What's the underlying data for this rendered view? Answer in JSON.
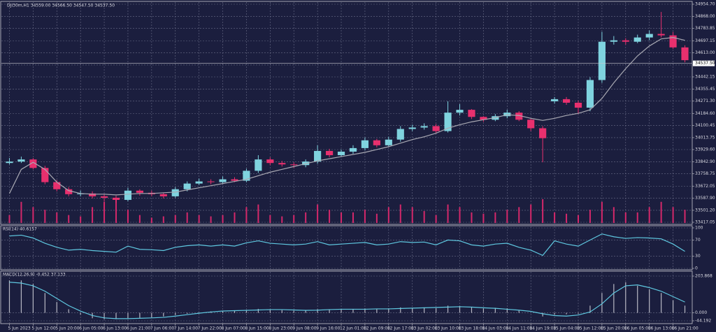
{
  "chart_data": [
    {
      "type": "candlestick",
      "title": "DJI30m,H1  34559.00 34566.50 34547.50 34537.50",
      "categories": [
        "5 Jun 2023",
        null,
        "5 Jun 12:00",
        null,
        "5 Jun 20:00",
        null,
        "6 Jun 05:00",
        null,
        "6 Jun 13:00",
        null,
        "6 Jun 21:00",
        null,
        "7 Jun 06:00",
        null,
        "7 Jun 14:00",
        null,
        "7 Jun 22:00",
        null,
        "8 Jun 07:00",
        null,
        "8 Jun 15:00",
        null,
        "8 Jun 23:00",
        null,
        "9 Jun 08:00",
        null,
        "9 Jun 16:00",
        null,
        "12 Jun 01:00",
        null,
        "12 Jun 09:00",
        null,
        "12 Jun 17:00",
        null,
        "13 Jun 02:00",
        null,
        "13 Jun 10:00",
        null,
        "13 Jun 18:00",
        null,
        "14 Jun 03:00",
        null,
        "14 Jun 11:00",
        null,
        "14 Jun 19:00",
        null,
        "15 Jun 04:00",
        null,
        "15 Jun 12:00",
        null,
        "15 Jun 20:00",
        null,
        "16 Jun 05:00",
        null,
        "16 Jun 13:00",
        null,
        "16 Jun 21:00",
        null
      ],
      "open": [
        33835,
        33845,
        33860,
        33800,
        33700,
        33650,
        33615,
        33620,
        33600,
        33590,
        33575,
        33640,
        33625,
        33615,
        33600,
        33650,
        33690,
        33705,
        33700,
        33720,
        33710,
        33780,
        33860,
        33835,
        33825,
        33820,
        33845,
        33920,
        33890,
        33915,
        33940,
        33995,
        33960,
        34000,
        34075,
        34085,
        34095,
        34060,
        34190,
        34210,
        34160,
        34140,
        34165,
        34190,
        34140,
        34080,
        34270,
        34285,
        34260,
        34225,
        34420,
        34690,
        34700,
        34690,
        34720,
        34745,
        34735,
        34650
      ],
      "high": [
        33870,
        33880,
        33870,
        33815,
        33715,
        33665,
        33640,
        33635,
        33615,
        33605,
        33660,
        33650,
        33640,
        33625,
        33665,
        33705,
        33725,
        33720,
        33740,
        33735,
        33795,
        33890,
        33875,
        33850,
        33840,
        33860,
        33960,
        33935,
        33930,
        33960,
        34015,
        34005,
        34020,
        34095,
        34105,
        34115,
        34110,
        34270,
        34250,
        34215,
        34165,
        34180,
        34210,
        34200,
        34150,
        34095,
        34300,
        34300,
        34275,
        34440,
        34760,
        34730,
        34715,
        34740,
        34770,
        34900,
        34760,
        34665
      ],
      "low": [
        33825,
        33835,
        33790,
        33685,
        33635,
        33600,
        33600,
        33585,
        33565,
        33555,
        33565,
        33605,
        33600,
        33585,
        33590,
        33635,
        33680,
        33685,
        33690,
        33700,
        33700,
        33765,
        33820,
        33810,
        33800,
        33805,
        33830,
        33875,
        33880,
        33900,
        33925,
        33945,
        33950,
        33985,
        34060,
        34070,
        34045,
        34050,
        34170,
        34145,
        34125,
        34130,
        34150,
        34130,
        34060,
        33840,
        34255,
        34245,
        34180,
        34200,
        34400,
        34670,
        34670,
        34680,
        34700,
        34720,
        34640,
        34545
      ],
      "close": [
        33845,
        33860,
        33800,
        33700,
        33650,
        33615,
        33620,
        33600,
        33590,
        33575,
        33640,
        33625,
        33615,
        33600,
        33650,
        33690,
        33705,
        33700,
        33720,
        33710,
        33780,
        33860,
        33835,
        33825,
        33820,
        33845,
        33920,
        33890,
        33915,
        33940,
        33995,
        33960,
        34000,
        34075,
        34085,
        34095,
        34060,
        34190,
        34210,
        34160,
        34140,
        34165,
        34190,
        34140,
        34080,
        34010,
        34285,
        34260,
        34225,
        34420,
        34690,
        34700,
        34690,
        34720,
        34745,
        34735,
        34650,
        34560
      ],
      "up_color": "#7fd3df",
      "down_color": "#e8306e",
      "ma": {
        "color": "#a9a9b3",
        "values": [
          33620,
          33790,
          33840,
          33790,
          33700,
          33640,
          33620,
          33615,
          33615,
          33610,
          33615,
          33620,
          33620,
          33625,
          33630,
          33645,
          33660,
          33675,
          33690,
          33705,
          33720,
          33745,
          33770,
          33790,
          33810,
          33830,
          33850,
          33865,
          33880,
          33895,
          33910,
          33930,
          33950,
          33975,
          34000,
          34020,
          34045,
          34080,
          34105,
          34125,
          34140,
          34155,
          34175,
          34170,
          34150,
          34135,
          34150,
          34170,
          34185,
          34210,
          34290,
          34400,
          34500,
          34590,
          34660,
          34710,
          34720,
          34700
        ]
      },
      "volume": {
        "color": "#d4286a",
        "values": [
          3000,
          8000,
          6000,
          5000,
          4000,
          3000,
          2500,
          6000,
          8000,
          9000,
          5000,
          3000,
          2000,
          2500,
          3000,
          4000,
          3000,
          2500,
          3000,
          4000,
          6000,
          7000,
          3000,
          2500,
          3000,
          4000,
          7000,
          5000,
          4000,
          4000,
          5000,
          3500,
          6000,
          7000,
          6000,
          4500,
          3000,
          7000,
          6000,
          4000,
          3500,
          4000,
          5000,
          6000,
          7000,
          9000,
          4000,
          3500,
          3000,
          5000,
          8000,
          6000,
          4000,
          4000,
          6000,
          8000,
          6000,
          5000
        ]
      },
      "ylim": [
        33417.05,
        34954.7
      ],
      "yticks": [
        {
          "value": 34954.7,
          "label": "34954.70"
        },
        {
          "value": 34868,
          "label": "34868.00"
        },
        {
          "value": 34783.85,
          "label": "34783.85"
        },
        {
          "value": 34697.15,
          "label": "34697.15"
        },
        {
          "value": 34613,
          "label": "34613.00"
        },
        {
          "value": 34526.3,
          "label": "34526.30"
        },
        {
          "value": 34442.15,
          "label": "34442.15"
        },
        {
          "value": 34355.45,
          "label": "34355.45"
        },
        {
          "value": 34271.3,
          "label": "34271.30"
        },
        {
          "value": 34184.6,
          "label": "34184.60"
        },
        {
          "value": 34100.45,
          "label": "34100.45"
        },
        {
          "value": 34013.75,
          "label": "34013.75"
        },
        {
          "value": 33929.6,
          "label": "33929.60"
        },
        {
          "value": 33842.9,
          "label": "33842.90"
        },
        {
          "value": 33758.75,
          "label": "33758.75"
        },
        {
          "value": 33672.05,
          "label": "33672.05"
        },
        {
          "value": 33587.9,
          "label": "33587.90"
        },
        {
          "value": 33501.2,
          "label": "33501.20"
        },
        {
          "value": 33417.05,
          "label": "33417.05"
        }
      ],
      "current_price": {
        "value": 34537.5,
        "label": "34537.50"
      },
      "grid": true
    },
    {
      "type": "line",
      "title": "RSI(14) 40.6157",
      "series": [
        {
          "color": "#5fc8e0",
          "values": [
            80,
            82,
            75,
            62,
            52,
            45,
            47,
            44,
            42,
            40,
            55,
            47,
            46,
            44,
            52,
            56,
            58,
            55,
            58,
            55,
            63,
            68,
            62,
            60,
            58,
            60,
            66,
            58,
            60,
            62,
            64,
            58,
            60,
            66,
            64,
            65,
            58,
            70,
            68,
            58,
            55,
            60,
            62,
            52,
            45,
            32,
            68,
            60,
            55,
            70,
            85,
            78,
            74,
            76,
            75,
            73,
            60,
            42
          ]
        }
      ],
      "ylim": [
        0,
        100
      ],
      "yticks": [
        100,
        70,
        30,
        0
      ],
      "grid": true
    },
    {
      "type": "macd",
      "title": "MACD(12,26,9) -0.452 37.133",
      "histogram": {
        "color": "#b8b8c4",
        "values": [
          180,
          180,
          160,
          110,
          60,
          20,
          -10,
          -30,
          -35,
          -35,
          -30,
          -28,
          -25,
          -20,
          -12,
          -5,
          2,
          8,
          12,
          14,
          16,
          22,
          18,
          15,
          12,
          14,
          20,
          16,
          20,
          22,
          24,
          20,
          25,
          30,
          28,
          30,
          26,
          40,
          38,
          30,
          24,
          28,
          25,
          12,
          0,
          -20,
          -10,
          -8,
          -5,
          40,
          110,
          160,
          170,
          150,
          130,
          110,
          70,
          40
        ]
      },
      "signal": {
        "color": "#5fc8e0",
        "values": [
          170,
          165,
          150,
          120,
          80,
          40,
          10,
          -15,
          -28,
          -32,
          -32,
          -30,
          -28,
          -25,
          -18,
          -10,
          -2,
          5,
          10,
          12,
          14,
          16,
          18,
          18,
          16,
          14,
          15,
          18,
          20,
          20,
          20,
          22,
          22,
          24,
          26,
          28,
          30,
          32,
          34,
          32,
          28,
          25,
          20,
          15,
          8,
          -5,
          -15,
          -18,
          -12,
          5,
          50,
          110,
          150,
          155,
          140,
          120,
          90,
          60
        ]
      },
      "ylim": [
        -44.192,
        203.868
      ],
      "yticks": [
        {
          "value": 203.868,
          "label": "203.868"
        },
        {
          "value": 0,
          "label": "0.000"
        },
        {
          "value": -44.192,
          "label": "-44.192"
        }
      ],
      "grid": true
    }
  ]
}
